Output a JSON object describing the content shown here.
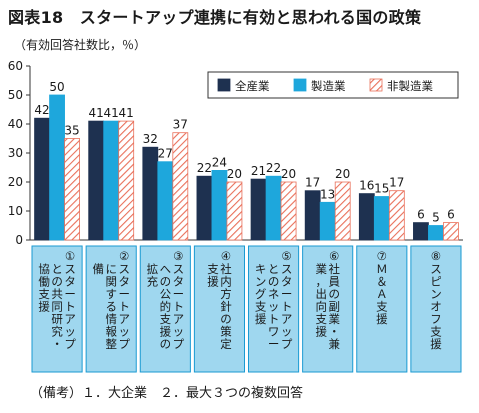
{
  "header": {
    "title": "図表18　スタートアップ連携に有効と思われる国の政策",
    "unit": "（有効回答社数比，％）"
  },
  "footnote": "（備考）１．大企業　２．最大３つの複数回答",
  "colors": {
    "series_0": "#1e3150",
    "series_1": "#1ea7dc",
    "series_2_stripe": "#e9705a",
    "category_band": "#9fd7ef",
    "category_border": "#1a9ad2",
    "axis": "#333333"
  },
  "chart_data": {
    "type": "bar",
    "ylim": [
      0,
      60
    ],
    "yticks": [
      0,
      10,
      20,
      30,
      40,
      50,
      60
    ],
    "grid": false,
    "legend_position": "top-right",
    "categories": [
      "①スタートアップとの共同研究・協働支援",
      "②スタートアップに関する情報整備",
      "③スタートアップへの公的支援の拡充",
      "④社内方針の策定支援",
      "⑤スタートアップとのネットワーキング支援",
      "⑥社員の副業・兼業，出向支援",
      "⑦M＆A支援",
      "⑧スピンオフ支援"
    ],
    "category_labels": [
      [
        "①",
        "スタートアップ",
        "との共同研究・",
        "協働支援"
      ],
      [
        "②",
        "スタートアップ",
        "に関する情報整",
        "備"
      ],
      [
        "③",
        "スタートアップ",
        "への公的支援の",
        "拡充"
      ],
      [
        "④",
        "社内方針の策定",
        "支援"
      ],
      [
        "⑤",
        "スタートアップ",
        "とのネットワー",
        "キング支援"
      ],
      [
        "⑥",
        "社員の副業・兼",
        "業，出向支援"
      ],
      [
        "⑦",
        "Ｍ＆Ａ支援"
      ],
      [
        "⑧",
        "スピンオフ支援"
      ]
    ],
    "series": [
      {
        "name": "全産業",
        "values": [
          42,
          41,
          32,
          22,
          21,
          17,
          16,
          6
        ]
      },
      {
        "name": "製造業",
        "values": [
          50,
          41,
          27,
          24,
          22,
          13,
          15,
          5
        ]
      },
      {
        "name": "非製造業",
        "values": [
          35,
          41,
          37,
          20,
          20,
          20,
          17,
          6
        ]
      }
    ]
  }
}
